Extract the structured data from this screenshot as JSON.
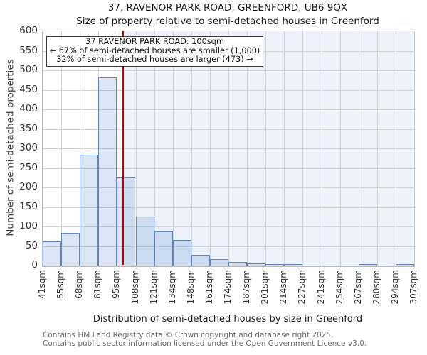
{
  "page": {
    "title": "37, RAVENOR PARK ROAD, GREENFORD, UB6 9QX",
    "subtitle": "Size of property relative to semi-detached houses in Greenford"
  },
  "annotation": {
    "line1": "37 RAVENOR PARK ROAD: 100sqm",
    "line2": "← 67% of semi-detached houses are smaller (1,000)",
    "line3": "32% of semi-detached houses are larger (473) →",
    "border_color": "#c00000"
  },
  "chart_data": {
    "type": "bar",
    "title": "37, RAVENOR PARK ROAD, GREENFORD, UB6 9QX",
    "subtitle": "Size of property relative to semi-detached houses in Greenford",
    "xlabel": "Distribution of semi-detached houses by size in Greenford",
    "ylabel": "Number of semi-detached properties",
    "ylim": [
      0,
      600
    ],
    "yticks": [
      0,
      50,
      100,
      150,
      200,
      250,
      300,
      350,
      400,
      450,
      500,
      550,
      600
    ],
    "grid": true,
    "legend": false,
    "bin_edges_sqm": [
      41,
      55,
      68,
      81,
      95,
      108,
      121,
      134,
      148,
      161,
      174,
      187,
      201,
      214,
      227,
      241,
      254,
      267,
      280,
      294,
      307
    ],
    "categories": [
      "41sqm",
      "55sqm",
      "68sqm",
      "81sqm",
      "95sqm",
      "108sqm",
      "121sqm",
      "134sqm",
      "148sqm",
      "161sqm",
      "174sqm",
      "187sqm",
      "201sqm",
      "214sqm",
      "227sqm",
      "241sqm",
      "254sqm",
      "267sqm",
      "280sqm",
      "294sqm",
      "307sqm"
    ],
    "values": [
      61,
      83,
      284,
      482,
      228,
      125,
      88,
      65,
      27,
      16,
      10,
      5,
      3,
      2,
      0,
      0,
      0,
      2,
      0,
      2
    ],
    "marker_sqm": 100,
    "colors": {
      "bar_fill": "rgba(93,135,199,0.22)",
      "bar_border": "#5d87c7",
      "marker_line": "#c00000",
      "shade_right_of_marker": "#eef2fb",
      "gridline": "#d2d2d2",
      "spine": "#c4c4c4"
    }
  },
  "footer": {
    "line1": "Contains HM Land Registry data © Crown copyright and database right 2025.",
    "line2": "Contains public sector information licensed under the Open Government Licence v3.0."
  }
}
